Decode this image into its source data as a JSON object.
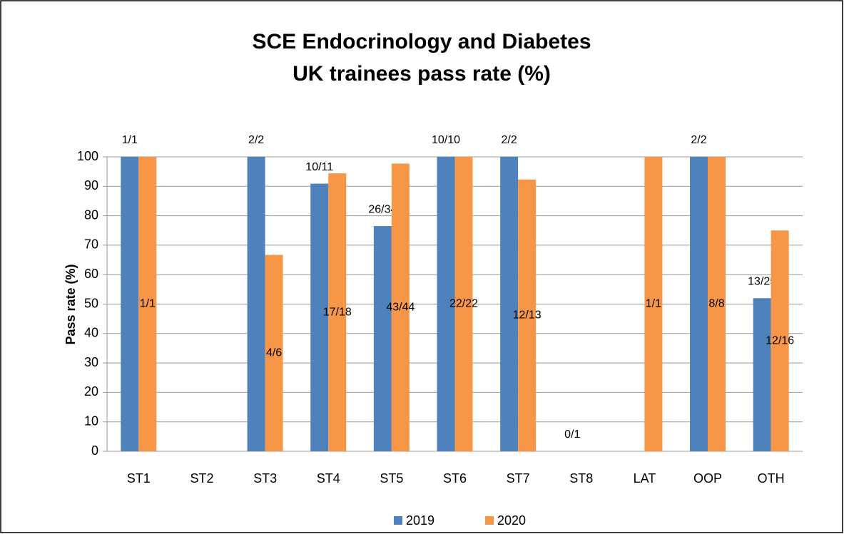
{
  "chart_data": {
    "type": "bar",
    "title": "SCE Endocrinology and Diabetes",
    "subtitle": "UK trainees pass rate (%)",
    "y_label": "Pass rate (%)",
    "categories": [
      "ST1",
      "ST2",
      "ST3",
      "ST4",
      "ST5",
      "ST6",
      "ST7",
      "ST8",
      "LAT",
      "OOP",
      "OTH"
    ],
    "series": [
      {
        "name": "2019",
        "color": "#4f81bd",
        "values": [
          100,
          null,
          100,
          90.9,
          76.5,
          100,
          100,
          0,
          null,
          100,
          52
        ],
        "value_labels": [
          "1/1",
          null,
          "2/2",
          "10/11",
          "26/34",
          "10/10",
          "2/2",
          "0/1",
          null,
          "2/2",
          "13/25"
        ]
      },
      {
        "name": "2020",
        "color": "#f79646",
        "values": [
          100,
          null,
          66.7,
          94.4,
          97.7,
          100,
          92.3,
          null,
          100,
          100,
          75
        ],
        "value_labels": [
          "1/1",
          null,
          "4/6",
          "17/18",
          "43/44",
          "22/22",
          "12/13",
          null,
          "1/1",
          "8/8",
          "12/16"
        ]
      }
    ],
    "ylim": [
      0,
      100
    ],
    "yticks": [
      0,
      10,
      20,
      30,
      40,
      50,
      60,
      70,
      80,
      90,
      100
    ],
    "grid": true,
    "legend": "bottom"
  }
}
